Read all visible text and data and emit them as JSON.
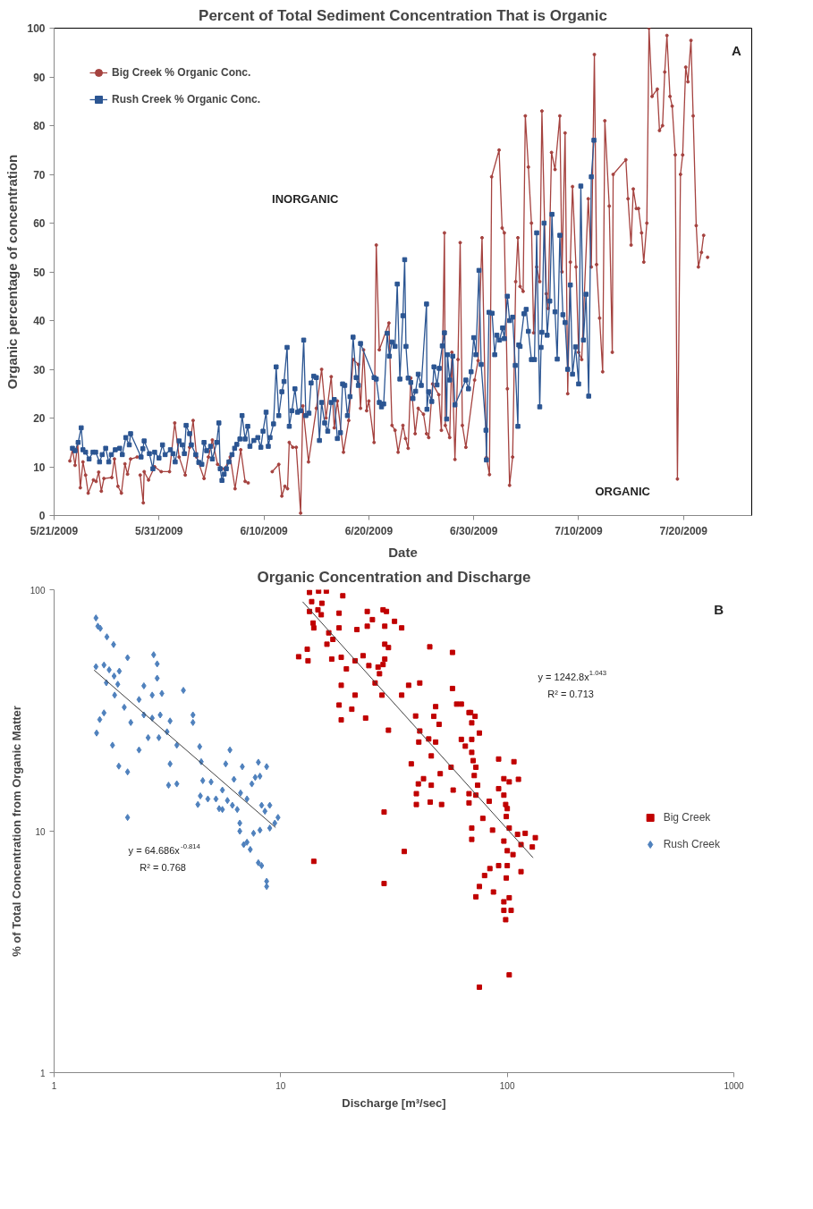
{
  "chart_data": [
    {
      "type": "line",
      "title": "Percent of Total Sediment Concentration That is Organic",
      "xlabel": "Date",
      "ylabel": "Organic percentage of concentration",
      "xlim": [
        "2009-05-21T00:00",
        "2009-07-26T12:00"
      ],
      "xticks": [
        {
          "value": "2009-05-21",
          "label": "5/21/2009"
        },
        {
          "value": "2009-05-31",
          "label": "5/31/2009"
        },
        {
          "value": "2009-06-10",
          "label": "6/10/2009"
        },
        {
          "value": "2009-06-20",
          "label": "6/20/2009"
        },
        {
          "value": "2009-06-30",
          "label": "6/30/2009"
        },
        {
          "value": "2009-07-10",
          "label": "7/10/2009"
        },
        {
          "value": "2009-07-20",
          "label": "7/20/2009"
        }
      ],
      "ylim": [
        0,
        100
      ],
      "yticks": [
        0,
        10,
        20,
        30,
        40,
        50,
        60,
        70,
        80,
        90,
        100
      ],
      "grid": false,
      "legend": "top left",
      "line_style": "solid",
      "annotations": [
        "INORGANIC",
        "ORGANIC",
        "A"
      ],
      "series": [
        {
          "name": "Big Creek % Organic Conc.",
          "color": "#a5423f",
          "marker": "circle",
          "x": [
            "2009-05-22T12:00",
            "2009-05-22T18:00",
            "2009-05-23T00:00",
            "2009-05-23T06:00",
            "2009-05-23T12:00",
            "2009-05-23T18:00",
            "2009-05-24T00:00",
            "2009-05-24T06:00",
            "2009-05-24T18:00",
            "2009-05-25T00:00",
            "2009-05-25T06:00",
            "2009-05-25T12:00",
            "2009-05-25T18:00",
            "2009-05-26T12:00",
            "2009-05-26T18:00",
            "2009-05-27T02:00",
            "2009-05-27T10:00",
            "2009-05-27T18:00",
            "2009-05-28T00:00",
            "2009-05-28T07:00",
            "2009-05-28T22:00",
            "2009-05-29T03:00",
            "2009-05-29T05:00",
            "2009-05-29T12:00",
            "2009-05-29T14:00",
            "2009-05-30T00:00",
            "2009-05-30T14:00",
            "2009-05-31T05:00",
            "2009-06-01T00:00",
            "2009-06-01T12:00",
            "2009-06-01T22:00",
            "2009-06-02T12:00",
            "2009-06-02T22:00",
            "2009-06-03T06:00",
            "2009-06-03T14:00",
            "2009-06-04T07:00",
            "2009-06-04T17:00",
            "2009-06-05T02:00",
            "2009-06-05T14:00",
            "2009-06-06T06:00",
            "2009-06-06T19:00",
            "2009-06-07T06:00",
            "2009-06-07T19:00",
            "2009-06-08T05:00",
            "2009-06-08T12:00",
            "2009-06-09T12:00",
            "2009-06-10T19:00",
            "2009-06-11T10:00",
            "2009-06-11T17:00",
            "2009-06-12T00:00",
            "2009-06-12T06:00",
            "2009-06-12T10:00",
            "2009-06-12T18:00",
            "2009-06-13T02:00",
            "2009-06-13T12:00",
            "2009-06-13T17:00",
            "2009-06-14T06:00",
            "2009-06-15T00:00",
            "2009-06-15T12:00",
            "2009-06-15T22:00",
            "2009-06-16T10:00",
            "2009-06-16T17:00",
            "2009-06-17T00:00",
            "2009-06-17T14:00",
            "2009-06-18T02:00",
            "2009-06-18T12:00",
            "2009-06-19T00:00",
            "2009-06-19T05:00",
            "2009-06-19T12:00",
            "2009-06-19T19:00",
            "2009-06-20T00:00",
            "2009-06-20T12:00",
            "2009-06-20T17:00",
            "2009-06-21T00:00",
            "2009-06-21T22:00",
            "2009-06-22T05:00",
            "2009-06-22T12:00",
            "2009-06-22T19:00",
            "2009-06-23T06:00",
            "2009-06-23T12:00",
            "2009-06-23T18:00",
            "2009-06-24T00:00",
            "2009-06-24T10:00",
            "2009-06-24T17:00",
            "2009-06-25T05:00",
            "2009-06-25T12:00",
            "2009-06-25T17:00",
            "2009-06-26T02:00",
            "2009-06-26T16:00",
            "2009-06-26T22:00",
            "2009-06-27T05:00",
            "2009-06-27T07:00",
            "2009-06-27T17:00",
            "2009-06-27T22:00",
            "2009-06-28T05:00",
            "2009-06-28T12:00",
            "2009-06-28T17:00",
            "2009-06-28T22:00",
            "2009-06-29T06:00",
            "2009-06-30T02:00",
            "2009-06-30T10:00",
            "2009-06-30T19:00",
            "2009-07-01T05:00",
            "2009-07-01T12:00",
            "2009-07-01T17:00",
            "2009-07-02T10:00",
            "2009-07-02T17:00",
            "2009-07-02T22:00",
            "2009-07-03T05:00",
            "2009-07-03T10:00",
            "2009-07-03T17:00",
            "2009-07-04T00:00",
            "2009-07-04T05:00",
            "2009-07-04T10:00",
            "2009-07-04T17:00",
            "2009-07-04T22:00",
            "2009-07-05T05:00",
            "2009-07-05T12:00",
            "2009-07-05T17:00",
            "2009-07-06T00:00",
            "2009-07-06T07:00",
            "2009-07-06T12:00",
            "2009-07-06T22:00",
            "2009-07-07T02:00",
            "2009-07-07T10:00",
            "2009-07-07T18:00",
            "2009-07-08T05:00",
            "2009-07-08T10:00",
            "2009-07-08T17:00",
            "2009-07-08T23:00",
            "2009-07-09T05:00",
            "2009-07-09T10:00",
            "2009-07-09T18:00",
            "2009-07-10T00:00",
            "2009-07-10T07:00",
            "2009-07-10T22:00",
            "2009-07-11T05:00",
            "2009-07-11T12:00",
            "2009-07-11T17:00",
            "2009-07-12T00:00",
            "2009-07-12T07:00",
            "2009-07-12T12:00",
            "2009-07-12T22:00",
            "2009-07-13T05:00",
            "2009-07-13T07:00",
            "2009-07-14T12:00",
            "2009-07-14T17:00",
            "2009-07-15T00:00",
            "2009-07-15T05:00",
            "2009-07-15T12:00",
            "2009-07-15T17:00",
            "2009-07-16T00:00",
            "2009-07-16T05:00",
            "2009-07-16T12:00",
            "2009-07-16T17:00",
            "2009-07-17T00:00",
            "2009-07-17T12:00",
            "2009-07-17T17:00",
            "2009-07-18T00:00",
            "2009-07-18T05:00",
            "2009-07-18T10:00",
            "2009-07-18T17:00",
            "2009-07-18T22:00",
            "2009-07-19T05:00",
            "2009-07-19T10:00",
            "2009-07-19T17:00",
            "2009-07-19T22:00",
            "2009-07-20T05:00",
            "2009-07-20T10:00",
            "2009-07-20T17:00",
            "2009-07-20T22:00",
            "2009-07-21T05:00",
            "2009-07-21T10:00",
            "2009-07-21T17:00",
            "2009-07-21T22:00",
            "2009-07-22T02:00",
            "2009-07-22T07:00"
          ],
          "values": [
            11.2,
            13.5,
            10.3,
            14.9,
            5.7,
            11,
            8.3,
            4.6,
            7.3,
            7,
            8.9,
            5,
            7.6,
            7.8,
            11.6,
            6,
            4.6,
            10.6,
            8.5,
            11.6,
            12,
            null,
            8.3,
            2.6,
            9,
            7.3,
            10,
            9,
            9,
            19,
            12,
            8.3,
            14,
            19.5,
            12,
            7.6,
            12,
            15.5,
            10.5,
            9.5,
            12,
            5.5,
            13.5,
            7,
            6.7,
            null,
            9,
            10.5,
            4,
            6,
            5.5,
            15,
            14,
            14,
            0.5,
            22.5,
            11,
            22,
            30,
            20,
            28.5,
            18,
            23.5,
            13,
            19.5,
            32,
            31,
            22,
            34,
            21.5,
            23.5,
            15,
            55.5,
            34,
            39.5,
            18.5,
            17.5,
            13,
            18.5,
            15.8,
            13.8,
            28.2,
            16.8,
            22,
            20.8,
            16.8,
            16,
            27,
            24.8,
            17.5,
            58,
            18.5,
            16,
            33.5,
            11.5,
            32,
            56,
            18.5,
            14,
            27.8,
            31.8,
            57,
            11.9,
            8.4,
            69.5,
            75,
            59,
            58,
            26,
            6.2,
            12,
            48,
            57,
            47,
            46,
            82,
            71.5,
            60,
            37.5,
            51,
            48,
            83,
            45.5,
            42.5,
            74.5,
            71,
            82,
            50,
            78.5,
            25,
            52,
            67.5,
            51,
            33.5,
            32,
            65,
            51,
            94.6,
            51.5,
            40.5,
            29.5,
            81,
            63.5,
            33.5,
            70,
            73,
            65,
            55.5,
            67,
            63,
            63,
            58,
            52,
            60,
            100,
            86,
            87.5,
            79,
            80,
            91,
            98.5,
            86,
            84,
            74,
            7.5,
            70,
            74,
            92,
            89,
            97.5,
            82,
            59.5,
            51,
            54,
            57.5,
            null,
            53
          ]
        },
        {
          "name": "Rush Creek % Organic Conc.",
          "color": "#2b5592",
          "marker": "square",
          "x": [
            "2009-05-22T18:00",
            "2009-05-23T00:00",
            "2009-05-23T07:00",
            "2009-05-23T14:00",
            "2009-05-23T18:00",
            "2009-05-24T00:00",
            "2009-05-24T08:00",
            "2009-05-24T17:00",
            "2009-05-24T23:00",
            "2009-05-25T08:00",
            "2009-05-25T14:00",
            "2009-05-25T22:00",
            "2009-05-26T05:00",
            "2009-05-26T11:00",
            "2009-05-26T20:00",
            "2009-05-27T06:00",
            "2009-05-27T12:00",
            "2009-05-27T20:00",
            "2009-05-28T04:00",
            "2009-05-28T07:00",
            "2009-05-29T07:00",
            "2009-05-29T11:00",
            "2009-05-29T14:00",
            "2009-05-30T02:00",
            "2009-05-30T10:00",
            "2009-05-30T14:00",
            "2009-05-31T00:00",
            "2009-05-31T08:00",
            "2009-05-31T14:00",
            "2009-06-01T02:00",
            "2009-06-01T08:00",
            "2009-06-01T13:00",
            "2009-06-01T22:00",
            "2009-06-02T05:00",
            "2009-06-02T10:00",
            "2009-06-02T14:00",
            "2009-06-02T22:00",
            "2009-06-03T02:00",
            "2009-06-03T12:00",
            "2009-06-03T19:00",
            "2009-06-04T02:00",
            "2009-06-04T07:00",
            "2009-06-04T13:00",
            "2009-06-04T22:00",
            "2009-06-05T02:00",
            "2009-06-05T12:00",
            "2009-06-05T17:00",
            "2009-06-05T20:00",
            "2009-06-06T00:00",
            "2009-06-06T05:00",
            "2009-06-06T10:00",
            "2009-06-06T16:00",
            "2009-06-06T23:00",
            "2009-06-07T05:00",
            "2009-06-07T10:00",
            "2009-06-07T17:00",
            "2009-06-07T22:00",
            "2009-06-08T05:00",
            "2009-06-08T11:00",
            "2009-06-08T16:00",
            "2009-06-09T01:00",
            "2009-06-09T10:00",
            "2009-06-09T17:00",
            "2009-06-09T22:00",
            "2009-06-10T05:00",
            "2009-06-10T10:00",
            "2009-06-10T14:00",
            "2009-06-10T22:00",
            "2009-06-11T04:00",
            "2009-06-11T10:00",
            "2009-06-11T17:00",
            "2009-06-11T22:00",
            "2009-06-12T05:00",
            "2009-06-12T10:00",
            "2009-06-12T16:00",
            "2009-06-12T23:00",
            "2009-06-13T05:00",
            "2009-06-13T12:00",
            "2009-06-13T19:00",
            "2009-06-14T00:00",
            "2009-06-14T07:00",
            "2009-06-14T12:00",
            "2009-06-14T18:00",
            "2009-06-15T00:00",
            "2009-06-15T07:00",
            "2009-06-15T12:00",
            "2009-06-15T19:00",
            "2009-06-16T02:00",
            "2009-06-16T10:00",
            "2009-06-16T17:00",
            "2009-06-17T00:00",
            "2009-06-17T07:00",
            "2009-06-17T12:00",
            "2009-06-17T17:00",
            "2009-06-17T23:00",
            "2009-06-18T05:00",
            "2009-06-18T12:00",
            "2009-06-18T19:00",
            "2009-06-19T00:00",
            "2009-06-19T05:00",
            "2009-06-20T12:00",
            "2009-06-20T17:00",
            "2009-06-21T00:00",
            "2009-06-21T05:00",
            "2009-06-21T10:00",
            "2009-06-21T18:00",
            "2009-06-21T23:00",
            "2009-06-22T05:00",
            "2009-06-22T12:00",
            "2009-06-22T17:00",
            "2009-06-22T23:00",
            "2009-06-23T06:00",
            "2009-06-23T10:00",
            "2009-06-23T13:00",
            "2009-06-23T18:00",
            "2009-06-24T00:00",
            "2009-06-24T05:00",
            "2009-06-24T11:00",
            "2009-06-24T17:00",
            "2009-06-25T00:00",
            "2009-06-25T12:00",
            "2009-06-25T13:00",
            "2009-06-25T17:00",
            "2009-06-26T00:00",
            "2009-06-26T05:00",
            "2009-06-26T12:00",
            "2009-06-26T17:00",
            "2009-06-27T00:00",
            "2009-06-27T05:00",
            "2009-06-27T10:00",
            "2009-06-27T12:00",
            "2009-06-27T17:00",
            "2009-06-28T00:00",
            "2009-06-28T05:00",
            "2009-06-29T06:00",
            "2009-06-29T12:00",
            "2009-06-29T18:00",
            "2009-06-30T00:00",
            "2009-06-30T05:00",
            "2009-06-30T12:00",
            "2009-06-30T17:00",
            "2009-07-01T04:00",
            "2009-07-01T05:00",
            "2009-07-01T11:00",
            "2009-07-01T18:00",
            "2009-07-02T00:00",
            "2009-07-02T05:00",
            "2009-07-02T11:00",
            "2009-07-02T18:00",
            "2009-07-02T22:00",
            "2009-07-03T05:00",
            "2009-07-03T10:00",
            "2009-07-03T17:00",
            "2009-07-03T23:00",
            "2009-07-04T05:00",
            "2009-07-04T07:00",
            "2009-07-04T10:00",
            "2009-07-04T19:00",
            "2009-07-05T00:00",
            "2009-07-05T05:00",
            "2009-07-05T12:00",
            "2009-07-05T19:00",
            "2009-07-06T00:00",
            "2009-07-06T07:00",
            "2009-07-06T10:00",
            "2009-07-06T12:00",
            "2009-07-06T17:00",
            "2009-07-07T00:00",
            "2009-07-07T06:00",
            "2009-07-07T11:00",
            "2009-07-07T18:00",
            "2009-07-07T23:00",
            "2009-07-08T05:00",
            "2009-07-08T12:00",
            "2009-07-08T17:00",
            "2009-07-08T23:00",
            "2009-07-09T05:00",
            "2009-07-09T10:00",
            "2009-07-09T17:00",
            "2009-07-10T00:00",
            "2009-07-10T05:00",
            "2009-07-10T11:00",
            "2009-07-10T17:00",
            "2009-07-10T23:00",
            "2009-07-11T05:00",
            "2009-07-11T11:00"
          ],
          "values": [
            13.8,
            13.3,
            15,
            18,
            13.5,
            13,
            11.6,
            13,
            13,
            11,
            12.5,
            13.8,
            11,
            12.5,
            13.5,
            13.8,
            12.5,
            16,
            14.5,
            16.8,
            12,
            13.7,
            15.3,
            12.7,
            9.6,
            13,
            11.8,
            14.5,
            12.5,
            13.5,
            12.7,
            11,
            15.3,
            14.5,
            12.7,
            18.5,
            16.8,
            14.5,
            12.5,
            10.9,
            10.5,
            15,
            13.3,
            14.2,
            11.6,
            15,
            19,
            9.6,
            7.2,
            8.5,
            9.6,
            11,
            12.5,
            13.8,
            14.6,
            15.7,
            20.5,
            15.7,
            18.3,
            14.2,
            15.4,
            16,
            14,
            17.3,
            21.2,
            14.2,
            16,
            18.8,
            30.5,
            20.5,
            25.4,
            27.5,
            34.5,
            18.3,
            21.5,
            26,
            21.2,
            21.5,
            36,
            20.5,
            21,
            27.2,
            28.6,
            28.3,
            15.4,
            23.2,
            19,
            17.3,
            23.2,
            23.8,
            15.8,
            17,
            27,
            26.7,
            20.5,
            24.4,
            36.6,
            28.3,
            26.7,
            35.3,
            28.3,
            28,
            23.2,
            22.3,
            22.9,
            37.4,
            32.7,
            35.6,
            34.7,
            47.5,
            28,
            41,
            52.5,
            34.7,
            28.2,
            27.3,
            24,
            25.5,
            29,
            26.7,
            43.4,
            21.8,
            25.4,
            23.4,
            30.5,
            26.8,
            30.2,
            34.8,
            37.5,
            19.8,
            33,
            27.8,
            32.7,
            22.7,
            27.8,
            26,
            29.5,
            36.5,
            33,
            50.3,
            31,
            17.5,
            11.4,
            41.7,
            41.5,
            33,
            37,
            36,
            38.5,
            36.3,
            45,
            40,
            40.7,
            30.8,
            18.3,
            35,
            34.7,
            41.4,
            42.3,
            37.8,
            32,
            32,
            58,
            22.3,
            34.5,
            37.6,
            60,
            37,
            44,
            61.8,
            41.8,
            32.1,
            57.5,
            41.2,
            39.6,
            30,
            47.3,
            29,
            34.6,
            27,
            67.6,
            36,
            45.4,
            24.5,
            69.5,
            77
          ]
        }
      ]
    },
    {
      "type": "scatter",
      "title": "Organic Concentration and Discharge",
      "xlabel": "Discharge [m³/sec]",
      "ylabel": "% of Total Concentration from Organic Matter",
      "log": "xy",
      "xlim": [
        1,
        1000
      ],
      "xticks": [
        1,
        10,
        100,
        1000
      ],
      "ylim": [
        1,
        100
      ],
      "yticks": [
        1,
        10,
        100
      ],
      "grid": false,
      "legend": "right",
      "annotations": [
        "y = 64.686x$^{-0.814}$",
        "R² = 0.768",
        "y = 1242.8x$^{1.043}$",
        "R² = 0.713",
        "B"
      ],
      "series": [
        {
          "name": "Big Creek",
          "color": "#c00000",
          "marker": "square",
          "x": [
            13.4,
            14.7,
            15.9,
            18.8,
            13.7,
            15.2,
            13.4,
            14.6,
            15.1,
            13.9,
            14.0,
            16.3,
            18.1,
            18.1,
            17.0,
            16.0,
            13.1,
            12.0,
            13.2,
            16.8,
            18.5,
            19.5,
            21.3,
            24.1,
            25.4,
            28.3,
            29.3,
            31.8,
            34.2,
            21.7,
            24.1,
            28.8,
            28.8,
            29.9,
            23.1,
            24.5,
            26.9,
            28.3,
            27.3,
            28.8,
            26.1,
            28,
            18.5,
            21.3,
            18.1,
            20.6,
            18.5,
            23.7,
            29.9,
            34.2,
            36.7,
            41.1,
            45.5,
            57.3,
            57.3,
            59.8,
            62.7,
            67.8,
            72.1,
            39.4,
            48.3,
            47.4,
            50,
            41.1,
            45,
            48.3,
            40.7,
            46.2,
            56.5,
            50.6,
            37.7,
            42.7,
            40.5,
            46.2,
            39.7,
            39.7,
            45.7,
            51.3,
            57.7,
            62.7,
            65.3,
            68.9,
            69.7,
            69.7,
            69.7,
            70.7,
            71.5,
            72.7,
            75.3,
            74,
            67.8,
            67.8,
            72.7,
            69.7,
            69.7,
            78,
            83.2,
            86.1,
            91.6,
            91.6,
            96.6,
            96.6,
            98.4,
            100,
            99,
            102,
            96.6,
            100,
            106,
            111,
            115,
            120,
            133,
            129,
            107,
            102,
            112,
            115,
            100,
            91.6,
            83.8,
            79.4,
            75.3,
            72.7,
            86.9,
            99,
            102,
            96.6,
            96.6,
            104,
            98.4,
            102,
            75.3,
            28.6,
            35.1,
            14.0,
            28.6
          ],
          "values": [
            97.5,
            98.7,
            98.7,
            94.4,
            89.3,
            87.9,
            81.3,
            82.6,
            78.8,
            72.8,
            69.5,
            66.3,
            80,
            69.5,
            62.3,
            59.5,
            56.7,
            52.8,
            50.8,
            51.6,
            52.5,
            47,
            50.8,
            81.3,
            75.2,
            82.6,
            81.3,
            74,
            69.5,
            68.4,
            70.6,
            70.6,
            59.5,
            57.6,
            53.3,
            48.5,
            47.8,
            49,
            44.9,
            51.6,
            41.1,
            36.6,
            40.2,
            36.6,
            33.3,
            32,
            28.9,
            29.4,
            26.2,
            36.6,
            40.2,
            41.1,
            58,
            55,
            39,
            33.6,
            33.6,
            31,
            29.9,
            30,
            32.8,
            29.9,
            27.7,
            26,
            24.1,
            23.4,
            23.4,
            20.5,
            18.4,
            17.3,
            19,
            16.5,
            15.7,
            15.5,
            14.3,
            12.9,
            13.2,
            12.9,
            14.8,
            24,
            22.5,
            31,
            28.1,
            24,
            21.2,
            19.6,
            17,
            18.4,
            25.5,
            15.5,
            14.3,
            13.1,
            14.1,
            10.3,
            9.25,
            11.3,
            13.3,
            10.1,
            15,
            19.9,
            16.5,
            14.1,
            12.9,
            12.4,
            11.5,
            10.3,
            9.1,
            8.3,
            8.0,
            9.7,
            8.8,
            9.8,
            9.4,
            8.6,
            19.4,
            16,
            16.4,
            6.8,
            7.2,
            7.2,
            7.0,
            6.55,
            5.9,
            5.35,
            5.6,
            6.4,
            5.3,
            5.1,
            4.7,
            4.7,
            4.3,
            2.54,
            2.26,
            6.07,
            8.24,
            7.5,
            12.0
          ]
        },
        {
          "name": "Rush Creek",
          "color": "#4f81bd",
          "marker": "diamond",
          "x": [
            1.53,
            1.56,
            1.6,
            1.71,
            1.83,
            1.53,
            1.66,
            1.75,
            1.94,
            2.11,
            1.84,
            1.7,
            1.85,
            1.91,
            2.04,
            1.59,
            1.54,
            1.66,
            1.81,
            1.93,
            2.11,
            2.11,
            2.18,
            2.37,
            2.49,
            2.75,
            2.85,
            2.85,
            2.71,
            2.99,
            2.49,
            2.71,
            2.94,
            2.37,
            2.6,
            2.9,
            3.15,
            3.25,
            3.48,
            3.72,
            4.1,
            4.1,
            3.25,
            3.48,
            3.2,
            4.39,
            4.46,
            4.53,
            4.42,
            4.31,
            4.93,
            5.18,
            5.53,
            5.72,
            5.97,
            5.53,
            5.82,
            6.22,
            6.65,
            6.77,
            7.1,
            7.46,
            7.72,
            7.97,
            8.1,
            8.24,
            8.52,
            8.95,
            8.67,
            9.73,
            9.42,
            8.95,
            8.1,
            7.59,
            7.1,
            6.6,
            6.6,
            6.87,
            7.34,
            7.97,
            8.24,
            8.67,
            8.67,
            6.43,
            6.12,
            5.35,
            4.77
          ],
          "values": [
            76.4,
            70.6,
            69.2,
            63.8,
            59.3,
            48,
            48.8,
            46.6,
            46,
            52.3,
            43.9,
            41.2,
            36.6,
            40.6,
            32.6,
            29,
            25.5,
            30.9,
            22.7,
            18.6,
            17.6,
            11.4,
            28.2,
            35.1,
            40,
            53.8,
            49.3,
            43,
            36.6,
            37.2,
            30.3,
            29.4,
            30.3,
            21.7,
            24.4,
            24.4,
            25.8,
            28.6,
            22.7,
            38.3,
            28.2,
            30.3,
            19,
            15.7,
            15.5,
            22.4,
            19.4,
            16.2,
            14,
            12.9,
            16,
            13.6,
            14.8,
            19,
            21.7,
            12.3,
            13.4,
            16.4,
            14.4,
            18.5,
            13.6,
            15.7,
            16.7,
            19.3,
            16.9,
            12.8,
            12.1,
            12.8,
            18.5,
            11.4,
            10.8,
            10.3,
            10.1,
            9.8,
            9.0,
            10.8,
            10,
            8.8,
            8.4,
            7.4,
            7.2,
            6.2,
            5.9,
            12.3,
            12.8,
            12.4,
            13.6
          ]
        },
        {
          "type": "line",
          "color": "#404040",
          "marker": "none",
          "x": [
            1.5,
            9.5
          ],
          "values": [
            46.5,
            10.35
          ]
        },
        {
          "type": "line",
          "color": "#404040",
          "marker": "none",
          "x": [
            12.5,
            130
          ],
          "values": [
            89.2,
            7.76
          ]
        }
      ]
    }
  ]
}
